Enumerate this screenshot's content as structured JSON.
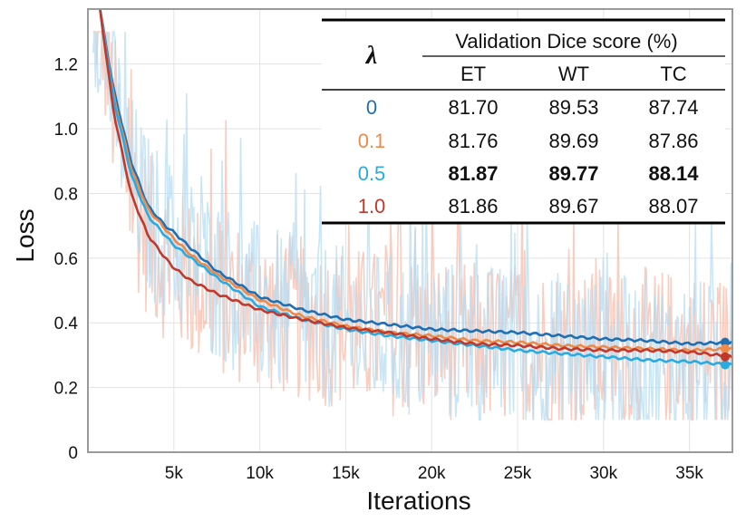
{
  "chart_data": {
    "type": "line",
    "xlabel": "Iterations",
    "ylabel": "Loss",
    "xlim": [
      0,
      37500
    ],
    "ylim": [
      0,
      1.37
    ],
    "x_ticks": [
      5000,
      10000,
      15000,
      20000,
      25000,
      30000,
      35000
    ],
    "x_tick_labels": [
      "5k",
      "10k",
      "15k",
      "20k",
      "25k",
      "30k",
      "35k"
    ],
    "y_ticks": [
      0,
      0.2,
      0.4,
      0.6,
      0.8,
      1.0,
      1.2
    ],
    "y_tick_labels": [
      "0",
      "0.2",
      "0.4",
      "0.6",
      "0.8",
      "1.0",
      "1.2"
    ],
    "grid": true,
    "x": [
      700,
      1500,
      2500,
      3500,
      4500,
      5000,
      6000,
      7500,
      10000,
      12500,
      15000,
      17500,
      20000,
      22500,
      25000,
      27500,
      30000,
      32500,
      35000,
      37500
    ],
    "series": [
      {
        "name": "0",
        "color": "#1f6fb4",
        "values": [
          1.37,
          1.12,
          0.9,
          0.76,
          0.7,
          0.68,
          0.63,
          0.56,
          0.48,
          0.44,
          0.41,
          0.395,
          0.38,
          0.375,
          0.37,
          0.36,
          0.35,
          0.345,
          0.335,
          0.34
        ]
      },
      {
        "name": "0.1",
        "color": "#ee8a4a",
        "values": [
          1.37,
          1.1,
          0.88,
          0.75,
          0.69,
          0.66,
          0.61,
          0.55,
          0.47,
          0.42,
          0.39,
          0.37,
          0.36,
          0.345,
          0.34,
          0.33,
          0.325,
          0.32,
          0.315,
          0.32
        ]
      },
      {
        "name": "0.5",
        "color": "#29abe2",
        "values": [
          1.37,
          1.09,
          0.86,
          0.73,
          0.67,
          0.64,
          0.6,
          0.54,
          0.45,
          0.41,
          0.38,
          0.36,
          0.345,
          0.33,
          0.315,
          0.305,
          0.295,
          0.285,
          0.28,
          0.27
        ]
      },
      {
        "name": "1.0",
        "color": "#c0392b",
        "values": [
          1.37,
          1.05,
          0.8,
          0.67,
          0.6,
          0.57,
          0.53,
          0.49,
          0.44,
          0.41,
          0.385,
          0.37,
          0.35,
          0.335,
          0.33,
          0.32,
          0.315,
          0.315,
          0.31,
          0.295
        ]
      }
    ],
    "raw_noise_colors": [
      "#f6b9a6",
      "#b3dcf2"
    ],
    "table": {
      "header_symbol": "λ",
      "group_header": "Validation Dice score (%)",
      "columns": [
        "ET",
        "WT",
        "TC"
      ],
      "rows": [
        {
          "lambda": "0",
          "color": "#1f6fb4",
          "values": [
            "81.70",
            "89.53",
            "87.74"
          ],
          "bold": [
            false,
            false,
            false
          ]
        },
        {
          "lambda": "0.1",
          "color": "#ee8a4a",
          "values": [
            "81.76",
            "89.69",
            "87.86"
          ],
          "bold": [
            false,
            false,
            false
          ]
        },
        {
          "lambda": "0.5",
          "color": "#29abe2",
          "values": [
            "81.87",
            "89.77",
            "88.14"
          ],
          "bold": [
            true,
            true,
            true
          ]
        },
        {
          "lambda": "1.0",
          "color": "#c0392b",
          "values": [
            "81.86",
            "89.67",
            "88.07"
          ],
          "bold": [
            false,
            false,
            false
          ]
        }
      ]
    }
  }
}
